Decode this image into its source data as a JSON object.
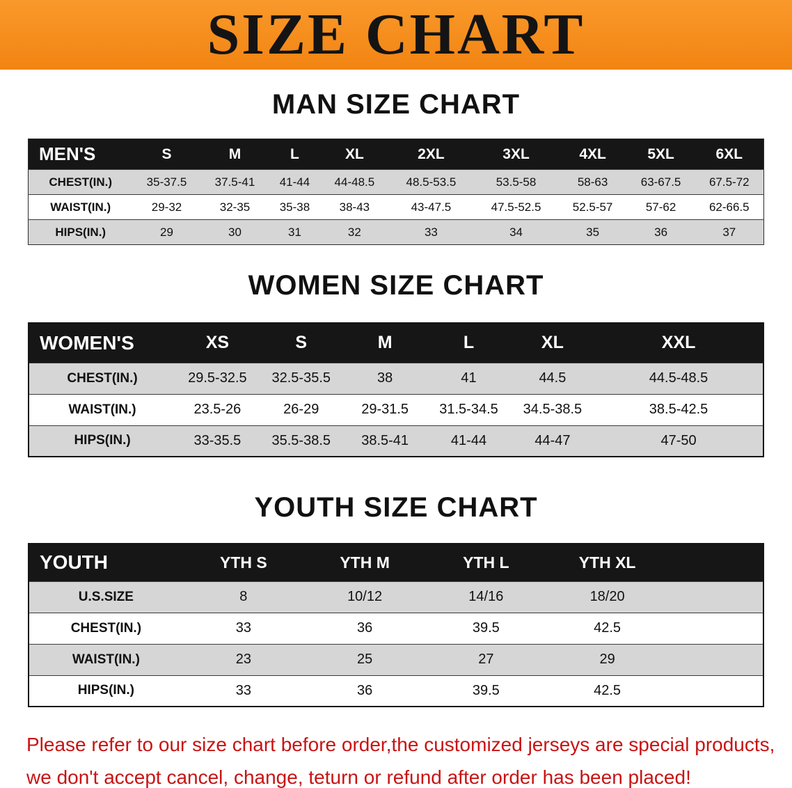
{
  "banner": {
    "title": "SIZE CHART",
    "bg_color": "#F28412",
    "text_color": "#141414"
  },
  "sections": [
    {
      "id": "men",
      "heading": "MAN SIZE CHART",
      "table": {
        "header": [
          "MEN'S",
          "S",
          "M",
          "L",
          "XL",
          "2XL",
          "3XL",
          "4XL",
          "5XL",
          "6XL"
        ],
        "rows": [
          [
            "CHEST(IN.)",
            "35-37.5",
            "37.5-41",
            "41-44",
            "44-48.5",
            "48.5-53.5",
            "53.5-58",
            "58-63",
            "63-67.5",
            "67.5-72"
          ],
          [
            "WAIST(IN.)",
            "29-32",
            "32-35",
            "35-38",
            "38-43",
            "43-47.5",
            "47.5-52.5",
            "52.5-57",
            "57-62",
            "62-66.5"
          ],
          [
            "HIPS(IN.)",
            "29",
            "30",
            "31",
            "32",
            "33",
            "34",
            "35",
            "36",
            "37"
          ]
        ]
      }
    },
    {
      "id": "women",
      "heading": "WOMEN SIZE CHART",
      "table": {
        "header": [
          "WOMEN'S",
          "XS",
          "S",
          "M",
          "L",
          "XL",
          "XXL"
        ],
        "rows": [
          [
            "CHEST(IN.)",
            "29.5-32.5",
            "32.5-35.5",
            "38",
            "41",
            "44.5",
            "44.5-48.5"
          ],
          [
            "WAIST(IN.)",
            "23.5-26",
            "26-29",
            "29-31.5",
            "31.5-34.5",
            "34.5-38.5",
            "38.5-42.5"
          ],
          [
            "HIPS(IN.)",
            "33-35.5",
            "35.5-38.5",
            "38.5-41",
            "41-44",
            "44-47",
            "47-50"
          ]
        ]
      }
    },
    {
      "id": "youth",
      "heading": "YOUTH SIZE CHART",
      "table": {
        "header": [
          "YOUTH",
          "YTH S",
          "YTH M",
          "YTH L",
          "YTH XL",
          ""
        ],
        "rows": [
          [
            "U.S.SIZE",
            "8",
            "10/12",
            "14/16",
            "18/20",
            ""
          ],
          [
            "CHEST(IN.)",
            "33",
            "36",
            "39.5",
            "42.5",
            ""
          ],
          [
            "WAIST(IN.)",
            "23",
            "25",
            "27",
            "29",
            ""
          ],
          [
            "HIPS(IN.)",
            "33",
            "36",
            "39.5",
            "42.5",
            ""
          ]
        ]
      }
    }
  ],
  "disclaimer": {
    "color": "#C81414",
    "line1": "Please refer to our size chart before order,the customized jerseys are special products,",
    "line2": "we don't accept cancel, change, teturn or refund after order has been placed!"
  }
}
